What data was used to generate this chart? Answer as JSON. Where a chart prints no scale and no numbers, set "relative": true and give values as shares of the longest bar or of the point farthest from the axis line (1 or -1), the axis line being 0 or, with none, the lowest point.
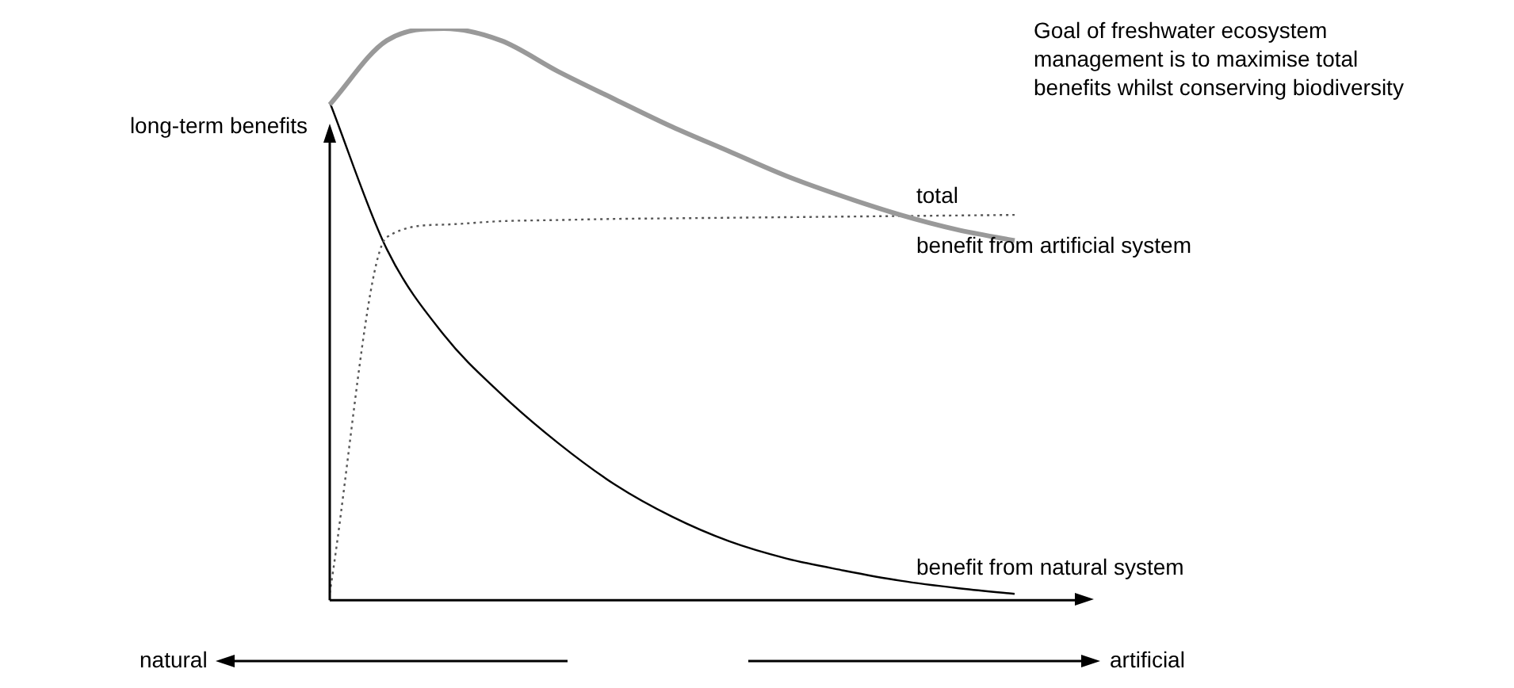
{
  "chart_data": {
    "type": "line",
    "relative": true,
    "ylabel": "long-term benefits",
    "categories": [
      null,
      null,
      null,
      null,
      null,
      null,
      null,
      null,
      null,
      null,
      null,
      null,
      null
    ],
    "series": [
      {
        "name": "total",
        "color": "#999999",
        "values": [
          0.867,
          0.979,
          1,
          0.979,
          0.925,
          0.876,
          0.828,
          0.785,
          0.742,
          0.706,
          0.674,
          0.648,
          0.629
        ]
      },
      {
        "name": "benefit from artificial system",
        "color": "#555555",
        "line_style": "dotted",
        "values": [
          0.013,
          0.635,
          0.657,
          0.663,
          0.665,
          0.667,
          0.668,
          0.669,
          0.67,
          0.671,
          0.672,
          0.673,
          0.674
        ]
      },
      {
        "name": "benefit from natural system",
        "color": "#000000",
        "values": [
          0.871,
          0.614,
          0.464,
          0.361,
          0.275,
          0.202,
          0.146,
          0.103,
          0.073,
          0.052,
          0.034,
          0.021,
          0.011
        ]
      }
    ],
    "annotations": [
      "Goal of freshwater ecosystem management is to maximise total benefits whilst conserving biodiversity",
      "natural",
      "artificial"
    ],
    "marker": "none",
    "legend": false
  }
}
